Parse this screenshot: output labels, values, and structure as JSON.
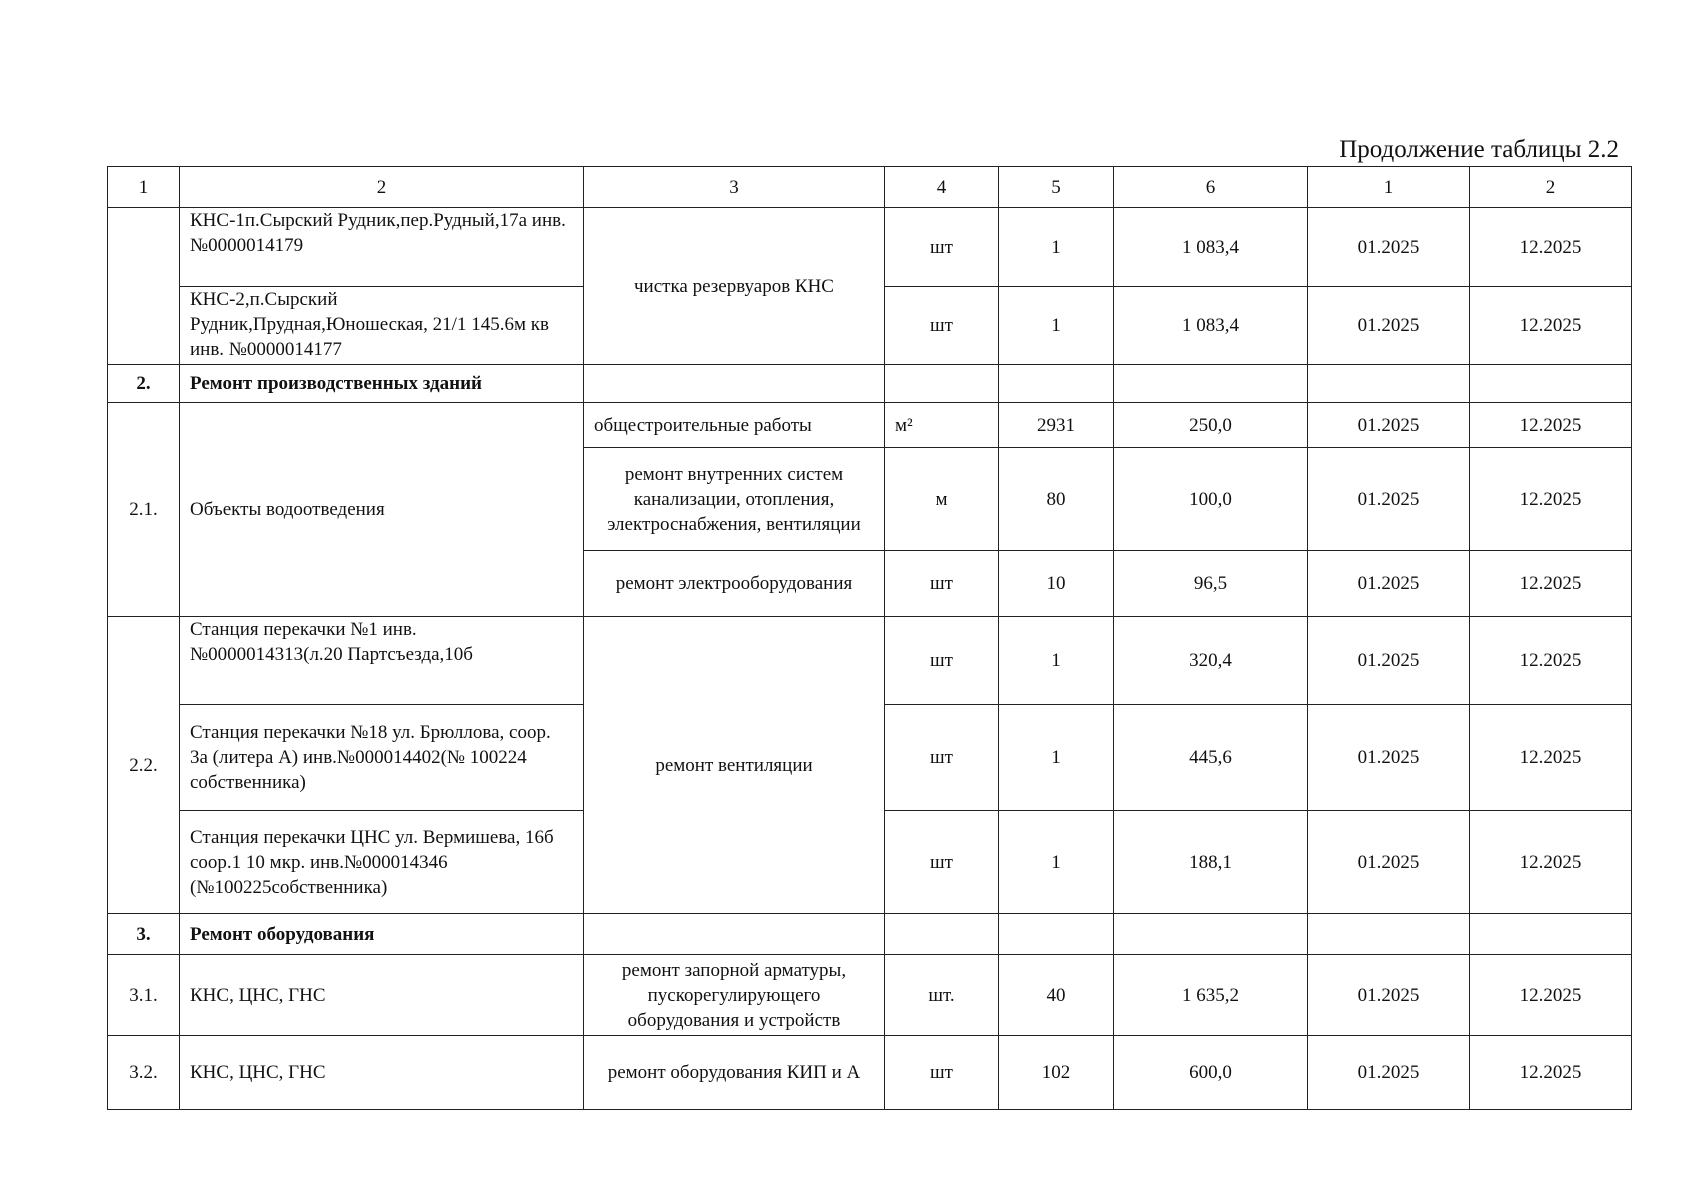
{
  "caption": "Продолжение таблицы 2.2",
  "headers": [
    "1",
    "2",
    "3",
    "4",
    "5",
    "6",
    "1",
    "2"
  ],
  "rows": {
    "r1a": {
      "name": "КНС-1п.Сырский Рудник,пер.Рудный,17а инв. №0000014179",
      "work": "чистка резервуаров КНС",
      "unit": "шт",
      "qty": "1",
      "cost": "1 083,4",
      "start": "01.2025",
      "end": "12.2025"
    },
    "r1b": {
      "name": "КНС-2,п.Сырский Рудник,Прудная,Юношеская, 21/1 145.6м кв инв. №0000014177",
      "unit": "шт",
      "qty": "1",
      "cost": "1 083,4",
      "start": "01.2025",
      "end": "12.2025"
    },
    "s2": {
      "num": "2.",
      "name": "Ремонт производственных зданий"
    },
    "r21": {
      "num": "2.1.",
      "name": "Объекты водоотведения"
    },
    "r21a": {
      "work": "общестроительные работы",
      "unit": "м²",
      "qty": "2931",
      "cost": "250,0",
      "start": "01.2025",
      "end": "12.2025"
    },
    "r21b": {
      "work": "ремонт внутренних систем канализации, отопления, электроснабжения, вентиляции",
      "unit": "м",
      "qty": "80",
      "cost": "100,0",
      "start": "01.2025",
      "end": "12.2025"
    },
    "r21c": {
      "work": "ремонт электрооборудования",
      "unit": "шт",
      "qty": "10",
      "cost": "96,5",
      "start": "01.2025",
      "end": "12.2025"
    },
    "r22": {
      "num": "2.2.",
      "work": "ремонт вентиляции"
    },
    "r22a": {
      "name": "Станция перекачки №1   инв. №0000014313(л.20 Партсъезда,10б",
      "unit": "шт",
      "qty": "1",
      "cost": "320,4",
      "start": "01.2025",
      "end": "12.2025"
    },
    "r22b": {
      "name": "Станция перекачки №18 ул. Брюллова, соор. 3а  (литера А) инв.№000014402(№ 100224 собственника)",
      "unit": "шт",
      "qty": "1",
      "cost": "445,6",
      "start": "01.2025",
      "end": "12.2025"
    },
    "r22c": {
      "name": "Станция перекачки ЦНС ул. Вермишева, 16б соор.1 10 мкр. инв.№000014346 (№100225собственника)",
      "unit": "шт",
      "qty": "1",
      "cost": "188,1",
      "start": "01.2025",
      "end": "12.2025"
    },
    "s3": {
      "num": "3.",
      "name": "Ремонт оборудования"
    },
    "r31": {
      "num": "3.1.",
      "name": "КНС, ЦНС, ГНС",
      "work": "ремонт запорной арматуры, пускорегулирующего оборудования и устройств",
      "unit": "шт.",
      "qty": "40",
      "cost": "1 635,2",
      "start": "01.2025",
      "end": "12.2025"
    },
    "r32": {
      "num": "3.2.",
      "name": "КНС, ЦНС, ГНС",
      "work": "ремонт оборудования КИП и А",
      "unit": "шт",
      "qty": "102",
      "cost": "600,0",
      "start": "01.2025",
      "end": "12.2025"
    }
  }
}
